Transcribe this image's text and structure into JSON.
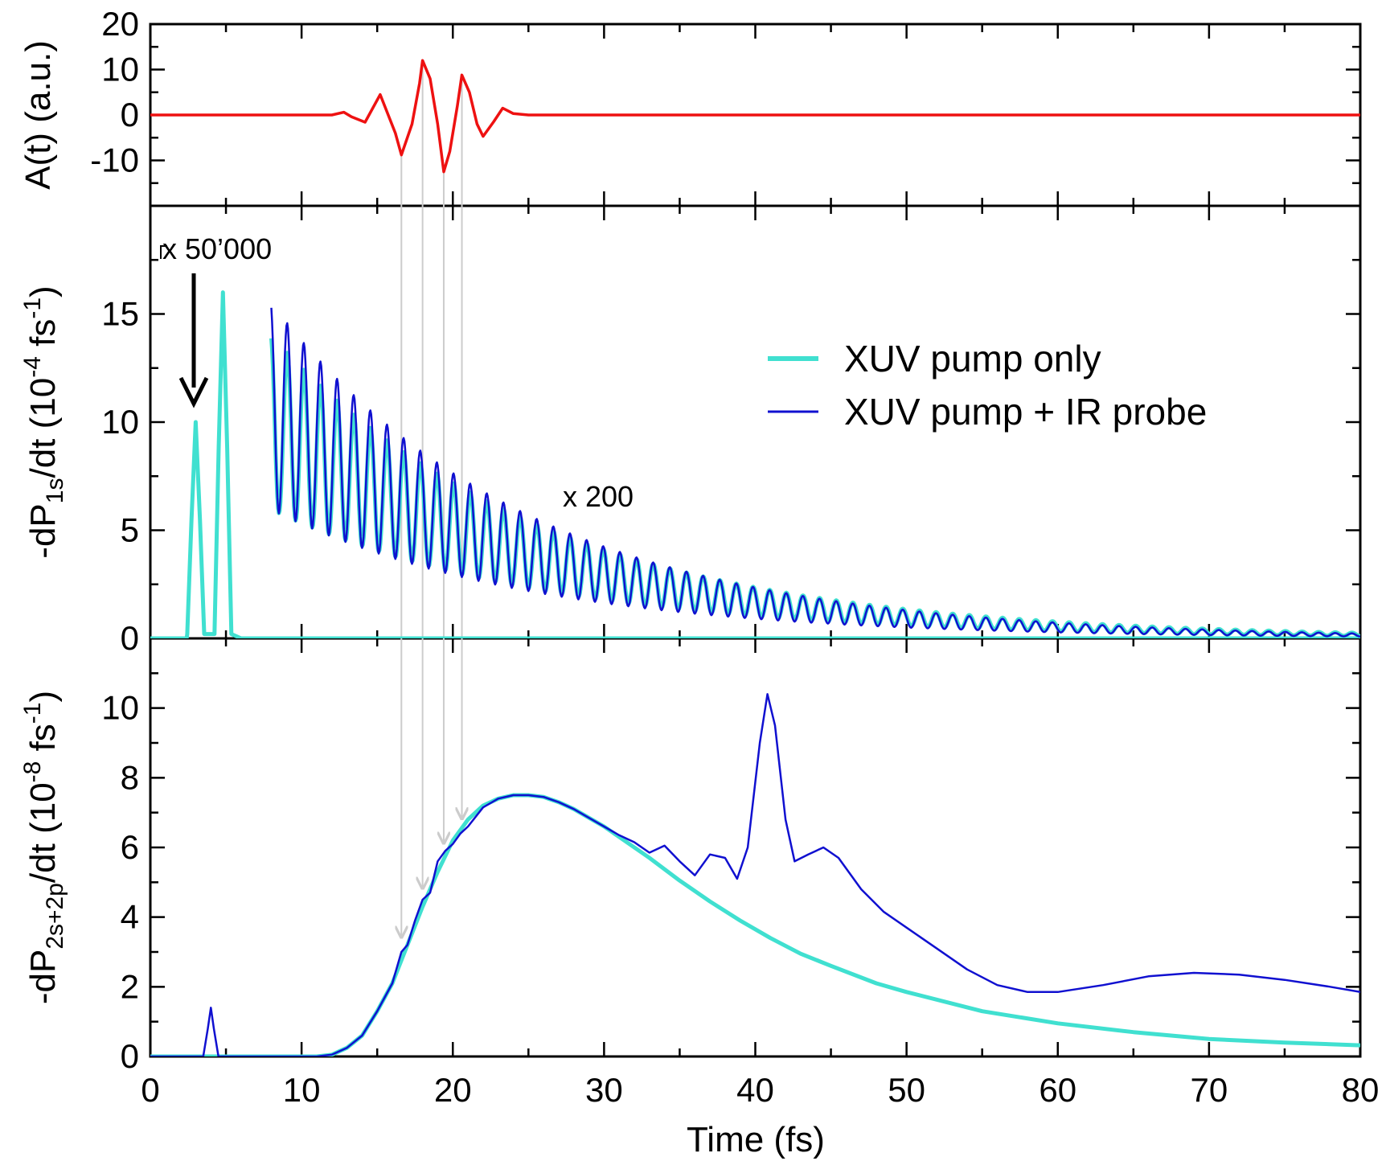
{
  "chart_data": [
    {
      "id": "top",
      "type": "line",
      "ylabel": "A(t) (a.u.)",
      "xlim": [
        0,
        80
      ],
      "ylim": [
        -20,
        20
      ],
      "yticks": [
        20,
        10,
        0,
        -10
      ],
      "ytick_labels": [
        "20",
        "10",
        "0",
        "-10"
      ],
      "series": [
        {
          "name": "A(t)",
          "color": "#ee1111",
          "points": [
            [
              0,
              0
            ],
            [
              12,
              0
            ],
            [
              12.8,
              0.6
            ],
            [
              13.3,
              -0.4
            ],
            [
              14.2,
              -1.6
            ],
            [
              15.2,
              4.5
            ],
            [
              16.2,
              -4
            ],
            [
              16.6,
              -8.8
            ],
            [
              17.3,
              -2
            ],
            [
              17.8,
              7
            ],
            [
              18.0,
              12
            ],
            [
              18.5,
              8
            ],
            [
              19.0,
              -2
            ],
            [
              19.4,
              -12.5
            ],
            [
              19.8,
              -8
            ],
            [
              20.3,
              2
            ],
            [
              20.6,
              8.8
            ],
            [
              21.1,
              5
            ],
            [
              21.6,
              -2
            ],
            [
              22.0,
              -4.7
            ],
            [
              22.7,
              -1.5
            ],
            [
              23.3,
              1.5
            ],
            [
              24.0,
              0.3
            ],
            [
              25,
              0
            ],
            [
              80,
              0
            ]
          ]
        }
      ]
    },
    {
      "id": "middle",
      "type": "line",
      "ylabel_main": "-dP",
      "ylabel_sub": "1s",
      "ylabel_rest": "/dt  (10",
      "ylabel_exp1": "-4",
      "ylabel_unit": " fs",
      "ylabel_exp2": "-1",
      "ylabel_close": ")",
      "xlim": [
        0,
        80
      ],
      "ylim": [
        0,
        20
      ],
      "yticks": [
        0,
        5,
        10,
        15
      ],
      "ytick_labels": [
        "0",
        "5",
        "10",
        "15"
      ],
      "annotations": [
        "x 50’000",
        "x 200"
      ],
      "legend": [
        "XUV pump only",
        "XUV pump + IR probe"
      ],
      "series": [
        {
          "name": "XUV pump only",
          "color": "#40e0d0",
          "early_peaks": [
            [
              3.0,
              10.0
            ],
            [
              4.8,
              16.0
            ]
          ],
          "oscillation": {
            "start": 8.0,
            "period": 1.1,
            "envelope_max": 14.0,
            "decay_fs": 18,
            "min_start": 9.6
          }
        },
        {
          "name": "XUV pump + IR probe",
          "color": "#1010d0",
          "oscillation": {
            "start": 8.0,
            "period": 1.1,
            "envelope_max": 15.5,
            "decay_fs": 17,
            "min_start": 9.6
          }
        }
      ]
    },
    {
      "id": "bottom",
      "type": "line",
      "ylabel_main": "-dP",
      "ylabel_sub": "2s+2p",
      "ylabel_rest": "/dt  (10",
      "ylabel_exp1": "-8",
      "ylabel_unit": " fs",
      "ylabel_exp2": "-1",
      "ylabel_close": ")",
      "xlabel": "Time (fs)",
      "xlim": [
        0,
        80
      ],
      "ylim": [
        0,
        12
      ],
      "yticks": [
        0,
        2,
        4,
        6,
        8,
        10
      ],
      "ytick_labels": [
        "0",
        "2",
        "4",
        "6",
        "8",
        "10"
      ],
      "xticks": [
        0,
        10,
        20,
        30,
        40,
        50,
        60,
        70,
        80
      ],
      "xtick_labels": [
        "0",
        "10",
        "20",
        "30",
        "40",
        "50",
        "60",
        "70",
        "80"
      ],
      "series": [
        {
          "name": "XUV pump only",
          "color": "#40e0d0",
          "points": [
            [
              0,
              0
            ],
            [
              11,
              0
            ],
            [
              12,
              0.05
            ],
            [
              13,
              0.25
            ],
            [
              14,
              0.6
            ],
            [
              15,
              1.3
            ],
            [
              16,
              2.1
            ],
            [
              17,
              3.2
            ],
            [
              18,
              4.3
            ],
            [
              19,
              5.3
            ],
            [
              20,
              6.2
            ],
            [
              21,
              6.8
            ],
            [
              22,
              7.2
            ],
            [
              23,
              7.4
            ],
            [
              24,
              7.5
            ],
            [
              25,
              7.5
            ],
            [
              26,
              7.45
            ],
            [
              27,
              7.3
            ],
            [
              28,
              7.1
            ],
            [
              29,
              6.85
            ],
            [
              30,
              6.6
            ],
            [
              31,
              6.3
            ],
            [
              32,
              6.0
            ],
            [
              33,
              5.7
            ],
            [
              35,
              5.05
            ],
            [
              37,
              4.45
            ],
            [
              39,
              3.9
            ],
            [
              41,
              3.4
            ],
            [
              43,
              2.95
            ],
            [
              45,
              2.6
            ],
            [
              48,
              2.1
            ],
            [
              50,
              1.85
            ],
            [
              55,
              1.3
            ],
            [
              60,
              0.95
            ],
            [
              65,
              0.7
            ],
            [
              70,
              0.5
            ],
            [
              75,
              0.4
            ],
            [
              80,
              0.32
            ]
          ]
        },
        {
          "name": "XUV pump + IR probe",
          "color": "#1010d0",
          "points": [
            [
              0,
              0
            ],
            [
              3.5,
              0
            ],
            [
              3.8,
              0.8
            ],
            [
              4.0,
              1.4
            ],
            [
              4.2,
              0.8
            ],
            [
              4.5,
              0
            ],
            [
              11,
              0
            ],
            [
              12,
              0.05
            ],
            [
              13,
              0.25
            ],
            [
              14,
              0.6
            ],
            [
              15,
              1.3
            ],
            [
              16,
              2.1
            ],
            [
              16.6,
              3.0
            ],
            [
              17,
              3.2
            ],
            [
              17.5,
              3.9
            ],
            [
              18,
              4.5
            ],
            [
              18.5,
              4.7
            ],
            [
              19,
              5.6
            ],
            [
              19.5,
              5.9
            ],
            [
              20,
              6.1
            ],
            [
              20.5,
              6.4
            ],
            [
              21,
              6.6
            ],
            [
              22,
              7.15
            ],
            [
              23,
              7.4
            ],
            [
              24,
              7.5
            ],
            [
              25,
              7.5
            ],
            [
              26,
              7.45
            ],
            [
              27,
              7.3
            ],
            [
              28,
              7.1
            ],
            [
              29,
              6.85
            ],
            [
              30,
              6.6
            ],
            [
              31,
              6.35
            ],
            [
              32,
              6.15
            ],
            [
              33,
              5.85
            ],
            [
              34,
              6.05
            ],
            [
              35,
              5.6
            ],
            [
              36,
              5.2
            ],
            [
              37,
              5.8
            ],
            [
              38,
              5.7
            ],
            [
              38.8,
              5.1
            ],
            [
              39.5,
              6.0
            ],
            [
              40.3,
              9.0
            ],
            [
              40.8,
              10.4
            ],
            [
              41.3,
              9.5
            ],
            [
              42,
              6.8
            ],
            [
              42.6,
              5.6
            ],
            [
              43.5,
              5.8
            ],
            [
              44.5,
              6.0
            ],
            [
              45.5,
              5.7
            ],
            [
              47,
              4.8
            ],
            [
              48.5,
              4.15
            ],
            [
              50,
              3.7
            ],
            [
              52,
              3.1
            ],
            [
              54,
              2.5
            ],
            [
              56,
              2.05
            ],
            [
              58,
              1.85
            ],
            [
              60,
              1.85
            ],
            [
              63,
              2.05
            ],
            [
              66,
              2.3
            ],
            [
              69,
              2.4
            ],
            [
              72,
              2.35
            ],
            [
              75,
              2.2
            ],
            [
              78,
              2.0
            ],
            [
              80,
              1.85
            ]
          ]
        }
      ]
    }
  ]
}
